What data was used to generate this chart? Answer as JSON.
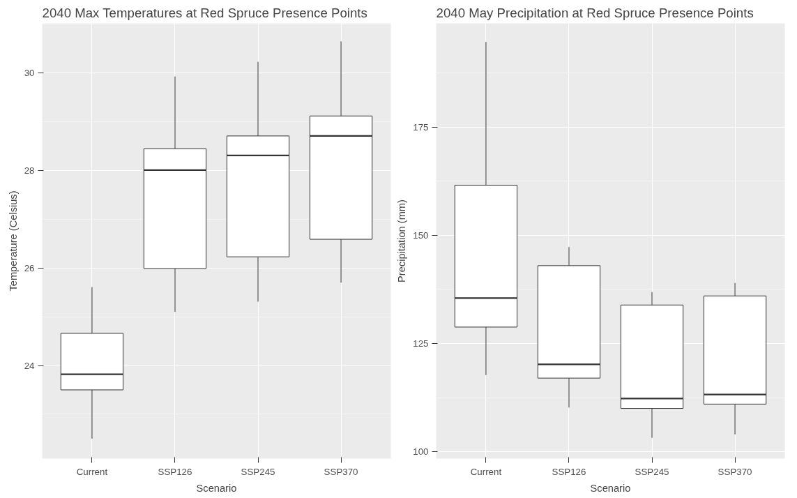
{
  "chart_data": [
    {
      "type": "box",
      "title": "2040 Max Temperatures at Red Spruce Presence Points",
      "xlabel": "Scenario",
      "ylabel": "Temperature (Celsius)",
      "categories": [
        "Current",
        "SSP126",
        "SSP245",
        "SSP370"
      ],
      "ylim": [
        22.09,
        31.02
      ],
      "yticks": [
        24,
        26,
        28,
        30
      ],
      "grid": true,
      "boxes": [
        {
          "low": 22.5,
          "q1": 23.5,
          "median": 23.82,
          "q3": 24.66,
          "high": 25.61
        },
        {
          "low": 25.1,
          "q1": 25.99,
          "median": 28.01,
          "q3": 28.45,
          "high": 29.93
        },
        {
          "low": 25.31,
          "q1": 26.23,
          "median": 28.31,
          "q3": 28.71,
          "high": 30.23
        },
        {
          "low": 25.7,
          "q1": 26.59,
          "median": 28.71,
          "q3": 29.12,
          "high": 30.65
        }
      ]
    },
    {
      "type": "box",
      "title": "2040 May Precipitation at Red Spruce Presence Points",
      "xlabel": "Scenario",
      "ylabel": "Precipitation (mm)",
      "categories": [
        "Current",
        "SSP126",
        "SSP245",
        "SSP370"
      ],
      "ylim": [
        98.4,
        199.0
      ],
      "yticks": [
        100,
        125,
        150,
        175
      ],
      "grid": true,
      "boxes": [
        {
          "low": 117.7,
          "q1": 128.8,
          "median": 135.5,
          "q3": 161.6,
          "high": 194.7
        },
        {
          "low": 110.2,
          "q1": 117.0,
          "median": 120.2,
          "q3": 143.0,
          "high": 147.3
        },
        {
          "low": 103.2,
          "q1": 110.0,
          "median": 112.3,
          "q3": 133.9,
          "high": 136.9
        },
        {
          "low": 104.0,
          "q1": 111.0,
          "median": 113.2,
          "q3": 136.0,
          "high": 139.0
        }
      ]
    }
  ]
}
